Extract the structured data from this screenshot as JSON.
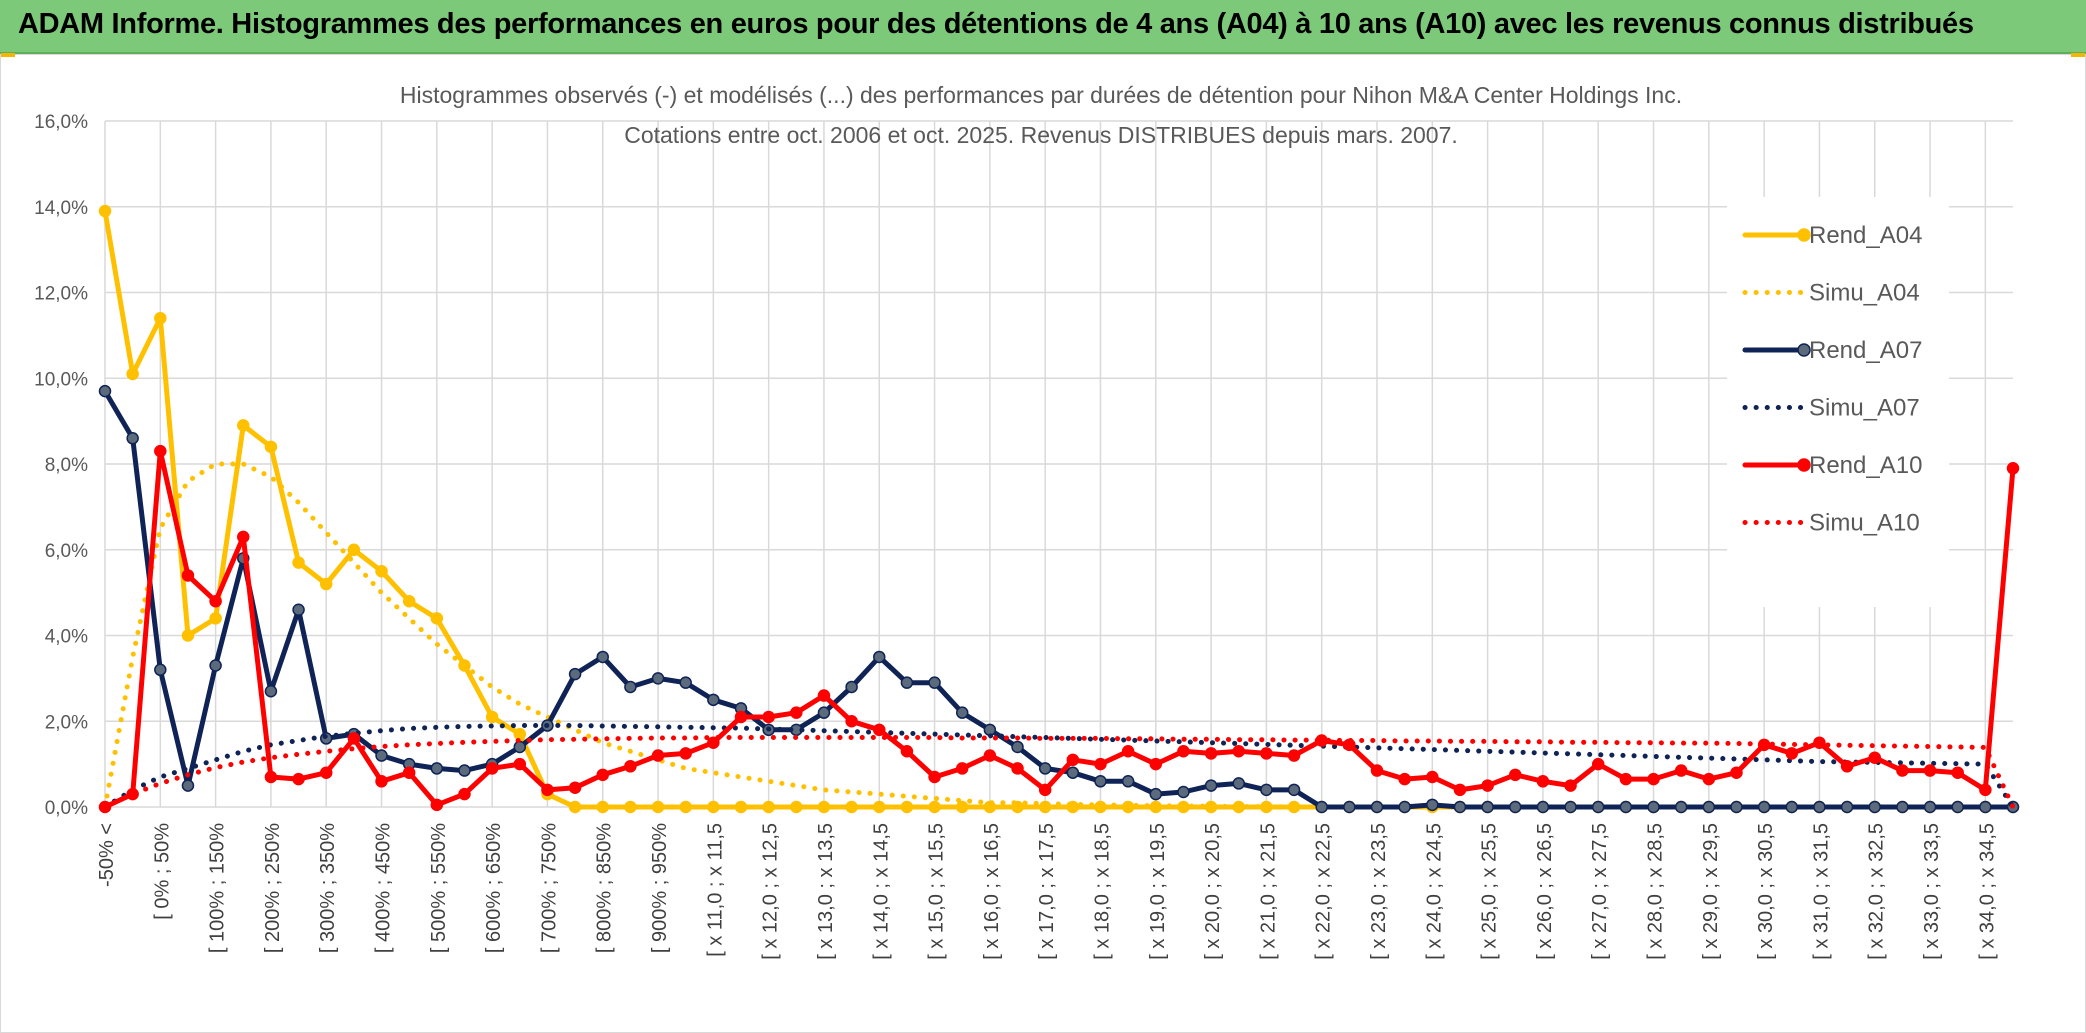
{
  "banner": {
    "title": "ADAM Informe. Histogrammes des performances en euros pour des détentions de 4 ans (A04) à 10 ans (A10) avec les revenus connus distribués"
  },
  "chart_data": {
    "type": "line",
    "title_line1": "Histogrammes observés (-) et modélisés (...) des performances par durées de détention pour Nihon M&A Center Holdings Inc.",
    "title_line2": "Cotations entre oct. 2006 et oct. 2025. Revenus DISTRIBUES depuis mars. 2007.",
    "ylim": [
      0,
      16
    ],
    "yticks": [
      "0,0%",
      "2,0%",
      "4,0%",
      "6,0%",
      "8,0%",
      "10,0%",
      "12,0%",
      "14,0%",
      "16,0%"
    ],
    "x_tick_labels": [
      "-50% <",
      "[ 0% ; 50%",
      "[ 100% ; 150%",
      "[ 200% ; 250%",
      "[ 300% ; 350%",
      "[ 400% ; 450%",
      "[ 500% ; 550%",
      "[ 600% ; 650%",
      "[ 700% ; 750%",
      "[ 800% ; 850%",
      "[ 900% ; 950%",
      "[ x 11,0 ; x 11,5",
      "[ x 12,0 ; x 12,5",
      "[ x 13,0 ; x 13,5",
      "[ x 14,0 ; x 14,5",
      "[ x 15,0 ; x 15,5",
      "[ x 16,0 ; x 16,5",
      "[ x 17,0 ; x 17,5",
      "[ x 18,0 ; x 18,5",
      "[ x 19,0 ; x 19,5",
      "[ x 20,0 ; x 20,5",
      "[ x 21,0 ; x 21,5",
      "[ x 22,0 ; x 22,5",
      "[ x 23,0 ; x 23,5",
      "[ x 24,0 ; x 24,5",
      "[ x 25,0 ; x 25,5",
      "[ x 26,0 ; x 26,5",
      "[ x 27,0 ; x 27,5",
      "[ x 28,0 ; x 28,5",
      "[ x 29,0 ; x 29,5",
      "[ x 30,0 ; x 30,5",
      "[ x 31,0 ; x 31,5",
      "[ x 32,0 ; x 32,5",
      "[ x 33,0 ; x 33,5",
      "[ x 34,0 ; x 34,5"
    ],
    "n_categories": 70,
    "legend_position": "right",
    "series": [
      {
        "name": "Rend_A04",
        "color": "#FFC000",
        "style": "solid",
        "markers": true,
        "values": [
          13.9,
          10.1,
          11.4,
          4.0,
          4.4,
          8.9,
          8.4,
          5.7,
          5.2,
          6.0,
          5.5,
          4.8,
          4.4,
          3.3,
          2.1,
          1.7,
          0.3,
          0.0,
          0.0,
          0.0,
          0.0,
          0.0,
          0.0,
          0.0,
          0.0,
          0.0,
          0.0,
          0.0,
          0.0,
          0.0,
          0.0,
          0.0,
          0.0,
          0.0,
          0.0,
          0.0,
          0.0,
          0.0,
          0.0,
          0.0,
          0.0,
          0.0,
          0.0,
          0.0,
          0.0,
          0.0,
          0.0,
          0.0,
          0.0,
          0.0,
          0.0,
          0.0,
          0.0,
          0.0,
          0.0,
          0.0,
          0.0,
          0.0,
          0.0,
          0.0,
          0.0,
          0.0,
          0.0,
          0.0,
          0.0,
          0.0,
          0.0,
          0.0,
          0.0,
          0.0
        ]
      },
      {
        "name": "Simu_A04",
        "color": "#FFC000",
        "style": "dotted",
        "markers": false,
        "values": [
          0.0,
          3.5,
          6.5,
          7.6,
          8.0,
          8.0,
          7.7,
          7.1,
          6.4,
          5.7,
          5.0,
          4.4,
          3.8,
          3.3,
          2.8,
          2.4,
          2.1,
          1.8,
          1.5,
          1.3,
          1.1,
          0.9,
          0.8,
          0.7,
          0.6,
          0.5,
          0.4,
          0.35,
          0.3,
          0.25,
          0.2,
          0.15,
          0.1,
          0.1,
          0.08,
          0.06,
          0.05,
          0.04,
          0.03,
          0.02,
          0.02,
          0.01,
          0.01,
          0.0,
          0.0,
          0.0,
          0.0,
          0.0,
          0.0,
          0.0,
          0.0,
          0.0,
          0.0,
          0.0,
          0.0,
          0.0,
          0.0,
          0.0,
          0.0,
          0.0,
          0.0,
          0.0,
          0.0,
          0.0,
          0.0,
          0.0,
          0.0,
          0.0,
          0.0,
          0.0
        ]
      },
      {
        "name": "Rend_A07",
        "color": "#0F2356",
        "style": "solid",
        "markers": true,
        "values": [
          9.7,
          8.6,
          3.2,
          0.5,
          3.3,
          5.8,
          2.7,
          4.6,
          1.6,
          1.7,
          1.2,
          1.0,
          0.9,
          0.85,
          1.0,
          1.4,
          1.9,
          3.1,
          3.5,
          2.8,
          3.0,
          2.9,
          2.5,
          2.3,
          1.8,
          1.8,
          2.2,
          2.8,
          3.5,
          2.9,
          2.9,
          2.2,
          1.8,
          1.4,
          0.9,
          0.8,
          0.6,
          0.6,
          0.3,
          0.35,
          0.5,
          0.55,
          0.4,
          0.4,
          0.0,
          0.0,
          0.0,
          0.0,
          0.05,
          0.0,
          0.0,
          0.0,
          0.0,
          0.0,
          0.0,
          0.0,
          0.0,
          0.0,
          0.0,
          0.0,
          0.0,
          0.0,
          0.0,
          0.0,
          0.0,
          0.0,
          0.0,
          0.0,
          0.0,
          0.0
        ]
      },
      {
        "name": "Simu_A07",
        "color": "#0F2356",
        "style": "dotted",
        "markers": false,
        "values": [
          0.0,
          0.4,
          0.7,
          0.9,
          1.1,
          1.3,
          1.45,
          1.55,
          1.65,
          1.72,
          1.78,
          1.83,
          1.86,
          1.88,
          1.89,
          1.9,
          1.9,
          1.9,
          1.89,
          1.88,
          1.87,
          1.86,
          1.85,
          1.84,
          1.82,
          1.8,
          1.78,
          1.76,
          1.74,
          1.72,
          1.7,
          1.68,
          1.66,
          1.64,
          1.62,
          1.6,
          1.58,
          1.56,
          1.54,
          1.52,
          1.5,
          1.48,
          1.46,
          1.44,
          1.42,
          1.4,
          1.38,
          1.36,
          1.34,
          1.32,
          1.3,
          1.28,
          1.26,
          1.24,
          1.22,
          1.2,
          1.18,
          1.16,
          1.14,
          1.12,
          1.1,
          1.08,
          1.06,
          1.05,
          1.04,
          1.03,
          1.02,
          1.01,
          1.0,
          0.0
        ]
      },
      {
        "name": "Rend_A10",
        "color": "#FF0000",
        "style": "solid",
        "markers": true,
        "values": [
          0.0,
          0.3,
          8.3,
          5.4,
          4.8,
          6.3,
          0.7,
          0.65,
          0.8,
          1.6,
          0.6,
          0.8,
          0.05,
          0.3,
          0.9,
          1.0,
          0.4,
          0.45,
          0.75,
          0.95,
          1.2,
          1.25,
          1.5,
          2.1,
          2.1,
          2.2,
          2.6,
          2.0,
          1.8,
          1.3,
          0.7,
          0.9,
          1.2,
          0.9,
          0.4,
          1.1,
          1.0,
          1.3,
          1.0,
          1.3,
          1.25,
          1.3,
          1.25,
          1.2,
          1.55,
          1.45,
          0.85,
          0.65,
          0.7,
          0.4,
          0.5,
          0.75,
          0.6,
          0.5,
          1.0,
          0.65,
          0.65,
          0.85,
          0.65,
          0.8,
          1.45,
          1.25,
          1.5,
          0.95,
          1.15,
          0.85,
          0.85,
          0.8,
          0.4,
          7.9
        ]
      },
      {
        "name": "Simu_A10",
        "color": "#FF0000",
        "style": "dotted",
        "markers": false,
        "values": [
          0.0,
          0.3,
          0.55,
          0.75,
          0.92,
          1.05,
          1.15,
          1.23,
          1.3,
          1.36,
          1.41,
          1.45,
          1.48,
          1.51,
          1.53,
          1.55,
          1.57,
          1.58,
          1.59,
          1.6,
          1.61,
          1.61,
          1.62,
          1.62,
          1.62,
          1.62,
          1.62,
          1.62,
          1.62,
          1.62,
          1.62,
          1.61,
          1.61,
          1.61,
          1.6,
          1.6,
          1.6,
          1.59,
          1.59,
          1.58,
          1.58,
          1.57,
          1.57,
          1.56,
          1.56,
          1.55,
          1.55,
          1.54,
          1.54,
          1.53,
          1.53,
          1.52,
          1.52,
          1.51,
          1.51,
          1.5,
          1.5,
          1.49,
          1.49,
          1.48,
          1.47,
          1.46,
          1.45,
          1.44,
          1.43,
          1.42,
          1.41,
          1.4,
          1.39,
          0.0
        ]
      }
    ]
  }
}
